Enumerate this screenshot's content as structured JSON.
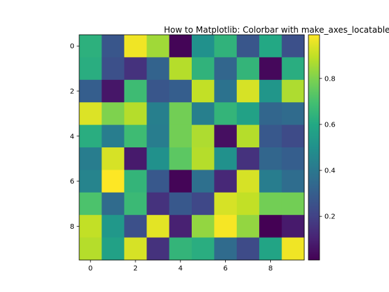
{
  "chart_data": {
    "type": "heatmap",
    "title": "How to Matplotlib: Colorbar with make_axes_locatable - h",
    "colormap": "viridis",
    "x_ticks": [
      "0",
      "2",
      "4",
      "6",
      "8"
    ],
    "y_ticks": [
      "0",
      "2",
      "4",
      "6",
      "8"
    ],
    "colorbar_ticks": [
      "0.2",
      "0.4",
      "0.6",
      "0.8"
    ],
    "colorbar_tick_values": [
      0.2,
      0.4,
      0.6,
      0.8
    ],
    "vmin": 0.01,
    "vmax": 0.99,
    "values": [
      [
        0.63,
        0.27,
        0.97,
        0.85,
        0.02,
        0.5,
        0.64,
        0.27,
        0.6,
        0.25
      ],
      [
        0.62,
        0.25,
        0.15,
        0.32,
        0.88,
        0.64,
        0.33,
        0.65,
        0.03,
        0.62
      ],
      [
        0.3,
        0.07,
        0.68,
        0.27,
        0.3,
        0.9,
        0.38,
        0.93,
        0.52,
        0.87
      ],
      [
        0.94,
        0.8,
        0.88,
        0.43,
        0.78,
        0.43,
        0.65,
        0.57,
        0.33,
        0.35
      ],
      [
        0.62,
        0.42,
        0.68,
        0.42,
        0.78,
        0.87,
        0.05,
        0.88,
        0.28,
        0.23
      ],
      [
        0.42,
        0.93,
        0.08,
        0.5,
        0.74,
        0.88,
        0.5,
        0.15,
        0.33,
        0.3
      ],
      [
        0.45,
        0.99,
        0.65,
        0.28,
        0.02,
        0.37,
        0.12,
        0.93,
        0.42,
        0.36
      ],
      [
        0.71,
        0.35,
        0.67,
        0.15,
        0.28,
        0.22,
        0.93,
        0.9,
        0.78,
        0.78
      ],
      [
        0.9,
        0.53,
        0.25,
        0.95,
        0.1,
        0.83,
        0.98,
        0.83,
        0.01,
        0.08
      ],
      [
        0.88,
        0.57,
        0.93,
        0.15,
        0.65,
        0.62,
        0.35,
        0.23,
        0.58,
        0.97
      ]
    ]
  }
}
